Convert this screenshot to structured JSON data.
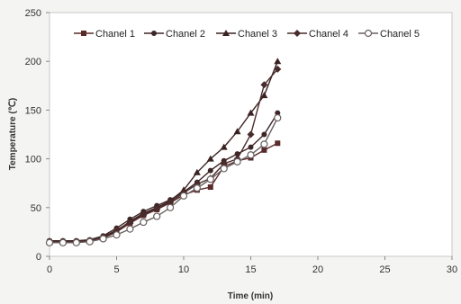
{
  "chart_data": {
    "type": "line",
    "title": "",
    "xlabel": "Time (min)",
    "ylabel": "Temperature (℃)",
    "xlim": [
      0,
      30
    ],
    "ylim": [
      0,
      250
    ],
    "xticks": [
      0,
      5,
      10,
      15,
      20,
      25,
      30
    ],
    "yticks": [
      0,
      50,
      100,
      150,
      200,
      250
    ],
    "grid": false,
    "legend_position": "top",
    "series": [
      {
        "name": "Chanel 1",
        "marker": "square",
        "x": [
          0,
          1,
          2,
          3,
          4,
          5,
          6,
          7,
          8,
          9,
          10,
          11,
          12,
          13,
          14,
          15,
          16,
          17
        ],
        "y": [
          15,
          15,
          15,
          16,
          19,
          25,
          34,
          42,
          48,
          55,
          63,
          68,
          71,
          92,
          98,
          101,
          109,
          116
        ]
      },
      {
        "name": "Chanel 2",
        "marker": "circle",
        "x": [
          0,
          1,
          2,
          3,
          4,
          5,
          6,
          7,
          8,
          9,
          10,
          11,
          12,
          13,
          14,
          15,
          16,
          17
        ],
        "y": [
          16,
          16,
          16,
          17,
          21,
          29,
          38,
          46,
          52,
          58,
          66,
          76,
          88,
          98,
          105,
          112,
          125,
          147
        ]
      },
      {
        "name": "Chanel 3",
        "marker": "triangle",
        "x": [
          0,
          1,
          2,
          3,
          4,
          5,
          6,
          7,
          8,
          9,
          10,
          11,
          12,
          13,
          14,
          15,
          16,
          17
        ],
        "y": [
          15,
          15,
          15,
          16,
          19,
          26,
          36,
          44,
          50,
          57,
          68,
          86,
          100,
          112,
          128,
          147,
          165,
          200
        ]
      },
      {
        "name": "Chanel 4",
        "marker": "diamond",
        "x": [
          0,
          1,
          2,
          3,
          4,
          5,
          6,
          7,
          8,
          9,
          10,
          11,
          12,
          13,
          14,
          15,
          16,
          17
        ],
        "y": [
          15,
          15,
          15,
          16,
          20,
          27,
          35,
          43,
          49,
          56,
          65,
          74,
          80,
          95,
          100,
          125,
          176,
          192
        ]
      },
      {
        "name": "Chanel 5",
        "marker": "circle-open",
        "x": [
          0,
          1,
          2,
          3,
          4,
          5,
          6,
          7,
          8,
          9,
          10,
          11,
          12,
          13,
          14,
          15,
          16,
          17
        ],
        "y": [
          14,
          14,
          14,
          15,
          18,
          22,
          28,
          35,
          41,
          50,
          62,
          70,
          79,
          90,
          97,
          104,
          115,
          142
        ]
      }
    ]
  }
}
